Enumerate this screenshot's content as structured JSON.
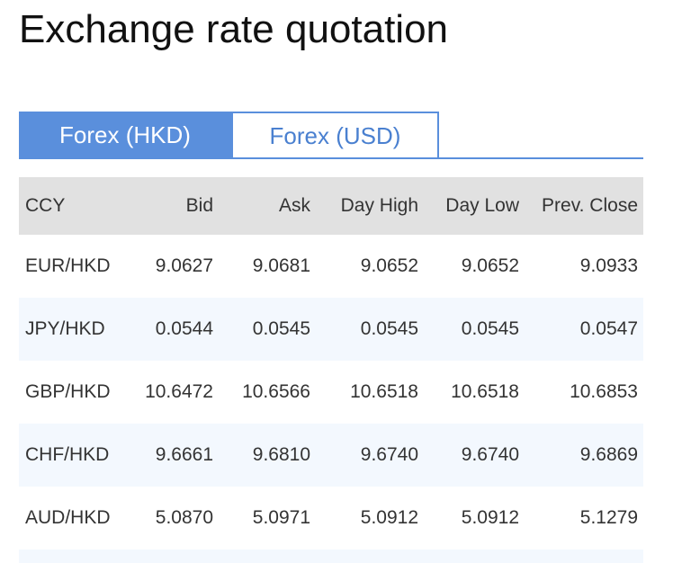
{
  "header": {
    "title": "Exchange rate quotation"
  },
  "tabs": [
    "Forex (HKD)",
    "Forex (USD)"
  ],
  "table": {
    "columns": [
      "CCY",
      "Bid",
      "Ask",
      "Day High",
      "Day Low",
      "Prev. Close"
    ],
    "rows": [
      [
        "EUR/HKD",
        "9.0627",
        "9.0681",
        "9.0652",
        "9.0652",
        "9.0933"
      ],
      [
        "JPY/HKD",
        "0.0544",
        "0.0545",
        "0.0545",
        "0.0545",
        "0.0547"
      ],
      [
        "GBP/HKD",
        "10.6472",
        "10.6566",
        "10.6518",
        "10.6518",
        "10.6853"
      ],
      [
        "CHF/HKD",
        "9.6661",
        "9.6810",
        "9.6740",
        "9.6740",
        "9.6869"
      ],
      [
        "AUD/HKD",
        "5.0870",
        "5.0971",
        "5.0912",
        "5.0912",
        "5.1279"
      ]
    ]
  }
}
